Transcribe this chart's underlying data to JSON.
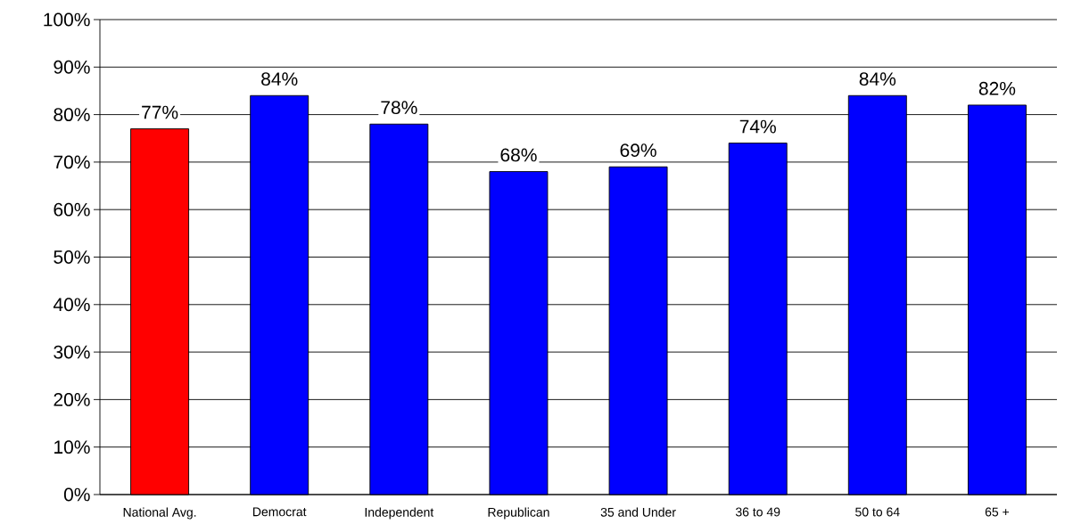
{
  "chart_data": {
    "type": "bar",
    "categories": [
      "National Avg.",
      "Democrat",
      "Independent",
      "Republican",
      "35 and Under",
      "36 to 49",
      "50 to 64",
      "65 +"
    ],
    "values": [
      77,
      84,
      78,
      68,
      69,
      74,
      84,
      82
    ],
    "colors": [
      "#ff0000",
      "#0000ff",
      "#0000ff",
      "#0000ff",
      "#0000ff",
      "#0000ff",
      "#0000ff",
      "#0000ff"
    ],
    "value_labels": [
      "77%",
      "84%",
      "78%",
      "68%",
      "69%",
      "74%",
      "84%",
      "82%"
    ],
    "ylim": [
      0,
      100
    ],
    "yticks": [
      {
        "value": 0,
        "label": "0%"
      },
      {
        "value": 10,
        "label": "10%"
      },
      {
        "value": 20,
        "label": "20%"
      },
      {
        "value": 30,
        "label": "30%"
      },
      {
        "value": 40,
        "label": "40%"
      },
      {
        "value": 50,
        "label": "50%"
      },
      {
        "value": 60,
        "label": "60%"
      },
      {
        "value": 70,
        "label": "70%"
      },
      {
        "value": 80,
        "label": "80%"
      },
      {
        "value": 90,
        "label": "90%"
      },
      {
        "value": 100,
        "label": "100%"
      }
    ],
    "grid": "y"
  }
}
